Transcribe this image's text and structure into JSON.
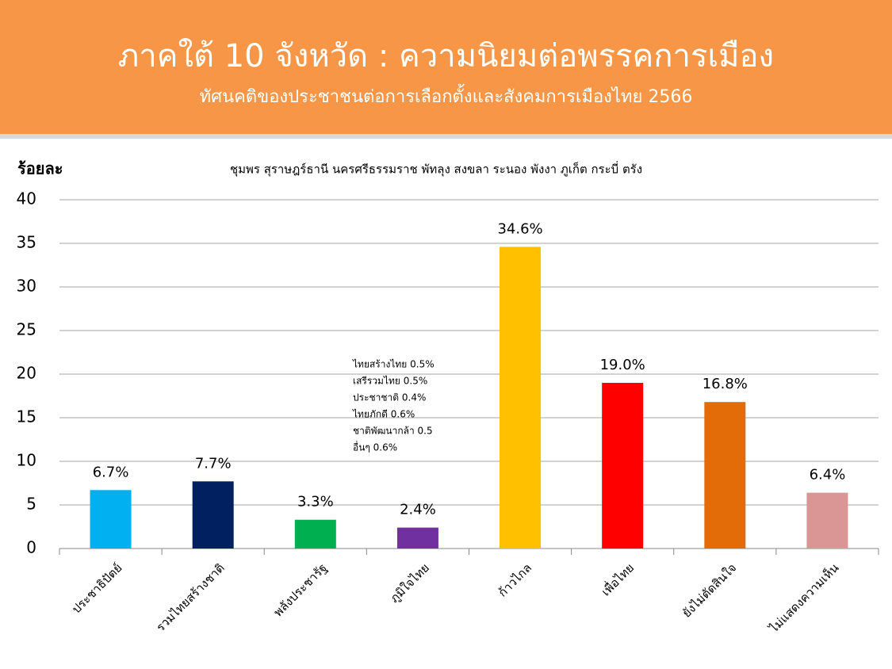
{
  "header": {
    "title": "ภาคใต้ 10 จังหวัด : ความนิยมต่อพรรคการเมือง",
    "subtitle": "ทัศนคติของประชาชนต่อการเลือกตั้งและสังคมการเมืองไทย 2566"
  },
  "chart_data": {
    "type": "bar",
    "title": "ชุมพร สุราษฎร์ธานี นครศรีธรรมราช พัทลุง สงขลา ระนอง พังงา ภูเก็ต กระบี่ ตรัง",
    "y_label": "ร้อยละ",
    "categories": [
      "ประชาธิปัตย์",
      "รวมไทยสร้างชาติ",
      "พลังประชารัฐ",
      "ภูมิใจไทย",
      "ก้าวไกล",
      "เพื่อไทย",
      "ยังไม่ตัดสินใจ",
      "ไม่แสดงความเห็น"
    ],
    "values": [
      6.7,
      7.7,
      3.3,
      2.4,
      34.6,
      19.0,
      16.8,
      6.4
    ],
    "value_labels": [
      "6.7%",
      "7.7%",
      "3.3%",
      "2.4%",
      "34.6%",
      "19.0%",
      "16.8%",
      "6.4%"
    ],
    "colors": [
      "#00b0f0",
      "#002060",
      "#00b050",
      "#7030a0",
      "#ffc000",
      "#ff0000",
      "#e36c09",
      "#d99694"
    ],
    "annotations": [
      "ไทยสร้างไทย  0.5%",
      "เสรีรวมไทย  0.5%",
      "ประชาชาติ  0.4%",
      "ไทยภักดี  0.6%",
      "ชาติพัฒนากล้า 0.5",
      "อื่นๆ  0.6%"
    ],
    "ylim": [
      0,
      40
    ],
    "yticks": [
      0,
      5,
      10,
      15,
      20,
      25,
      30,
      35,
      40
    ],
    "grid": true
  }
}
